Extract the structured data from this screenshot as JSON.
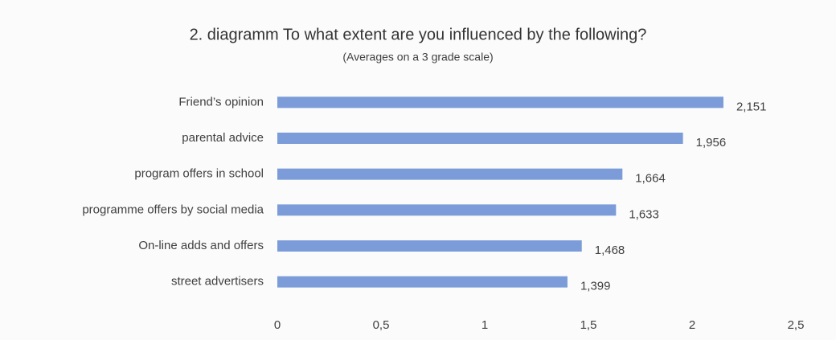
{
  "chart_data": {
    "type": "bar",
    "orientation": "horizontal",
    "title": "2. diagramm To what extent are you influenced by the following?",
    "subtitle": "(Averages on a 3 grade scale)",
    "categories": [
      "Friend’s opinion",
      "parental advice",
      "program offers in school",
      "programme offers by social media",
      "On-line adds and offers",
      "street advertisers"
    ],
    "values": [
      2.151,
      1.956,
      1.664,
      1.633,
      1.468,
      1.399
    ],
    "value_labels": [
      "2,151",
      "1,956",
      "1,664",
      "1,633",
      "1,468",
      "1,399"
    ],
    "color": "#7b9cd8",
    "xlim": [
      0,
      2.5
    ],
    "xticks": [
      0,
      {
        "value": 0.5,
        "label": "0,5"
      },
      1,
      {
        "value": 1.5,
        "label": "1,5"
      },
      2,
      {
        "value": 2.5,
        "label": "2,5"
      }
    ],
    "grid": false
  }
}
